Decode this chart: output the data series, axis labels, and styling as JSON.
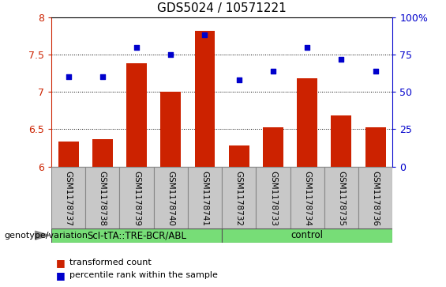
{
  "title": "GDS5024 / 10571221",
  "samples": [
    "GSM1178737",
    "GSM1178738",
    "GSM1178739",
    "GSM1178740",
    "GSM1178741",
    "GSM1178732",
    "GSM1178733",
    "GSM1178734",
    "GSM1178735",
    "GSM1178736"
  ],
  "bar_values": [
    6.33,
    6.37,
    7.38,
    7.0,
    7.82,
    6.28,
    6.52,
    7.18,
    6.68,
    6.52
  ],
  "percentile_values": [
    60,
    60,
    80,
    75,
    88,
    58,
    64,
    80,
    72,
    64
  ],
  "group1_label": "ScI-tTA::TRE-BCR/ABL",
  "group2_label": "control",
  "group1_count": 5,
  "group2_count": 5,
  "ylim_left": [
    6.0,
    8.0
  ],
  "ylim_right": [
    0,
    100
  ],
  "yticks_left": [
    6.0,
    6.5,
    7.0,
    7.5,
    8.0
  ],
  "ytick_labels_left": [
    "6",
    "6.5",
    "7",
    "7.5",
    "8"
  ],
  "yticks_right": [
    0,
    25,
    50,
    75,
    100
  ],
  "ytick_labels_right": [
    "0",
    "25",
    "50",
    "75",
    "100%"
  ],
  "bar_color": "#cc2200",
  "dot_color": "#0000cc",
  "bar_bottom": 6.0,
  "bg_color": "#c8c8c8",
  "group_bg_color": "#77dd77",
  "legend_bar_label": "transformed count",
  "legend_dot_label": "percentile rank within the sample",
  "genotype_label": "genotype/variation"
}
